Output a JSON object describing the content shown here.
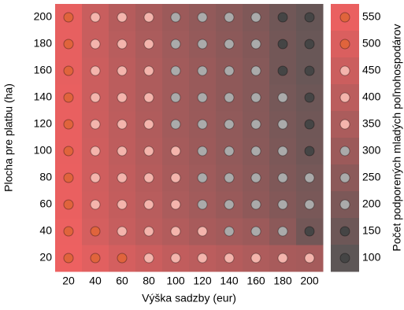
{
  "chart_data": {
    "type": "heatmap",
    "x_label": "Výška sadzby (eur)",
    "y_label": "Plocha pre platbu (ha)",
    "colorbar_label": "Počet podporených mladých poľnohospodárov",
    "x": [
      20,
      40,
      60,
      80,
      100,
      120,
      140,
      160,
      180,
      200
    ],
    "y": [
      20,
      40,
      60,
      80,
      100,
      120,
      140,
      160,
      180,
      200
    ],
    "values": [
      [
        560,
        520,
        480,
        450,
        420,
        400,
        380,
        360,
        340,
        330
      ],
      [
        555,
        480,
        435,
        400,
        370,
        340,
        320,
        300,
        250,
        170
      ],
      [
        550,
        470,
        425,
        390,
        350,
        320,
        290,
        260,
        220,
        190
      ],
      [
        550,
        465,
        420,
        380,
        340,
        310,
        280,
        250,
        210,
        180
      ],
      [
        545,
        460,
        410,
        370,
        330,
        300,
        270,
        240,
        200,
        165
      ],
      [
        545,
        455,
        405,
        365,
        320,
        295,
        265,
        235,
        190,
        160
      ],
      [
        545,
        450,
        400,
        360,
        320,
        290,
        260,
        230,
        180,
        150
      ],
      [
        540,
        450,
        400,
        360,
        320,
        290,
        260,
        230,
        170,
        140
      ],
      [
        540,
        440,
        390,
        350,
        310,
        280,
        250,
        220,
        170,
        140
      ],
      [
        540,
        440,
        380,
        340,
        300,
        270,
        240,
        210,
        160,
        130
      ]
    ],
    "clim": [
      75,
      575
    ],
    "colorbar_ticks": [
      550,
      500,
      450,
      400,
      350,
      300,
      250,
      200,
      150,
      100
    ],
    "marker_colors": [
      "#e0643c",
      "#e0643c",
      "#f4b4ac",
      "#f4b4ac",
      "#f4b4ac",
      "#aaaaaa",
      "#aaaaaa",
      "#aaaaaa",
      "#454545",
      "#454545"
    ],
    "low_color": "#555555",
    "high_color": "#f26161"
  }
}
